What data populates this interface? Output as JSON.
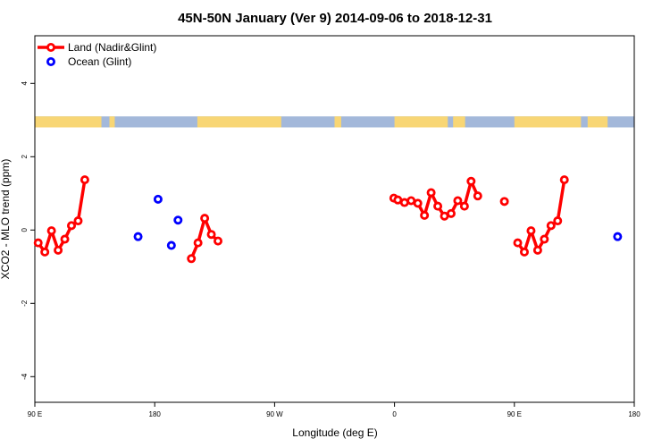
{
  "chart_data": {
    "type": "line",
    "title": "45N-50N January (Ver 9)   2014-09-06 to 2018-12-31",
    "xlabel": "Longitude (deg E)",
    "ylabel": "XCO2 - MLO trend (ppm)",
    "xlim": [
      90,
      540
    ],
    "ylim": [
      -4.7,
      5.3
    ],
    "x_ticks": [
      {
        "value": 90,
        "label": "90 E"
      },
      {
        "value": 180,
        "label": "180"
      },
      {
        "value": 270,
        "label": "90 W"
      },
      {
        "value": 360,
        "label": "0"
      },
      {
        "value": 450,
        "label": "90 E"
      },
      {
        "value": 540,
        "label": "180"
      }
    ],
    "y_ticks": [
      {
        "value": -4,
        "label": "-4"
      },
      {
        "value": -2,
        "label": "-2"
      },
      {
        "value": 0,
        "label": "0"
      },
      {
        "value": 2,
        "label": "2"
      },
      {
        "value": 4,
        "label": "4"
      }
    ],
    "legend_position": "top-left",
    "land_ocean_strip": {
      "y_range": [
        2.8,
        3.1
      ],
      "land_color": "#f8d675",
      "ocean_color": "#a3b8da",
      "land_segments": [
        [
          90,
          140
        ],
        [
          146,
          150
        ],
        [
          212,
          275
        ],
        [
          315,
          320
        ],
        [
          360,
          400
        ],
        [
          404,
          413
        ],
        [
          450,
          500
        ],
        [
          505,
          520
        ]
      ]
    },
    "series": [
      {
        "name": "Land (Nadir&Glint)",
        "color": "#ff0000",
        "lines": true,
        "segments": [
          {
            "x": [
              92.5,
              97.5,
              102.5,
              107.5,
              112.5,
              117.5,
              122.5,
              127.5
            ],
            "y": [
              -0.35,
              -0.6,
              -0.02,
              -0.55,
              -0.25,
              0.12,
              0.25,
              1.37
            ]
          },
          {
            "x": [
              207.5,
              212.5,
              217.5,
              222.5,
              227.5
            ],
            "y": [
              -0.78,
              -0.35,
              0.32,
              -0.12,
              -0.3
            ]
          },
          {
            "x": [
              359.5,
              362.5,
              367.5,
              372.5,
              377.5,
              382.5,
              387.5,
              392.5,
              397.5,
              402.5,
              407.5,
              412.5,
              417.5,
              422.5
            ],
            "y": [
              0.87,
              0.82,
              0.75,
              0.8,
              0.73,
              0.4,
              1.02,
              0.65,
              0.38,
              0.45,
              0.8,
              0.65,
              1.33,
              0.93
            ]
          },
          {
            "x": [
              442.5
            ],
            "y": [
              0.78
            ]
          },
          {
            "x": [
              452.5,
              457.5,
              462.5,
              467.5,
              472.5,
              477.5,
              482.5,
              487.5
            ],
            "y": [
              -0.35,
              -0.6,
              -0.02,
              -0.55,
              -0.25,
              0.12,
              0.25,
              1.37
            ]
          }
        ]
      },
      {
        "name": "Ocean (Glint)",
        "color": "#0000ff",
        "lines": false,
        "segments": [
          {
            "x": [
              167.5
            ],
            "y": [
              -0.18
            ]
          },
          {
            "x": [
              182.5
            ],
            "y": [
              0.84
            ]
          },
          {
            "x": [
              192.5
            ],
            "y": [
              -0.42
            ]
          },
          {
            "x": [
              197.5
            ],
            "y": [
              0.27
            ]
          },
          {
            "x": [
              527.5
            ],
            "y": [
              -0.18
            ]
          }
        ]
      }
    ]
  }
}
